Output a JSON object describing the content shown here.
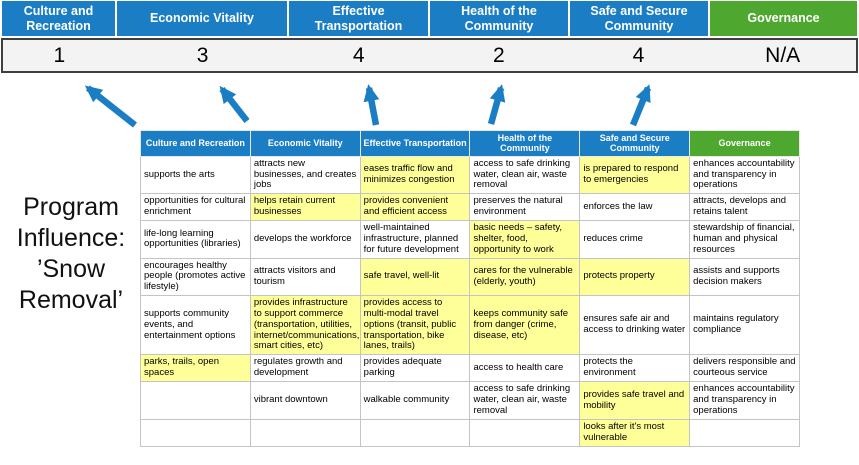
{
  "program_label": "Program Influence: ’Snow Removal’",
  "colors": {
    "header_blue": "#1b7ec5",
    "header_green": "#4ea72e",
    "highlight_yellow": "#ffff99",
    "arrow_blue": "#1b7ec5",
    "score_band_bg": "#f3f3f3",
    "score_band_border": "#3f3f3f"
  },
  "scoreboard": {
    "columns": [
      {
        "label": "Culture and Recreation",
        "score": "1",
        "style": "blue"
      },
      {
        "label": "Economic Vitality",
        "score": "3",
        "style": "blue"
      },
      {
        "label": "Effective Transportation",
        "score": "4",
        "style": "blue"
      },
      {
        "label": "Health of the Community",
        "score": "2",
        "style": "blue"
      },
      {
        "label": "Safe and Secure Community",
        "score": "4",
        "style": "blue"
      },
      {
        "label": "Governance",
        "score": "N/A",
        "style": "green"
      }
    ]
  },
  "matrix": {
    "headers": [
      {
        "label": "Culture and Recreation",
        "style": "blue"
      },
      {
        "label": "Economic Vitality",
        "style": "blue"
      },
      {
        "label": "Effective Transportation",
        "style": "blue"
      },
      {
        "label": "Health of the Community",
        "style": "blue"
      },
      {
        "label": "Safe and Secure Community",
        "style": "blue"
      },
      {
        "label": "Governance",
        "style": "green"
      }
    ],
    "rows": [
      [
        {
          "text": "supports the arts",
          "highlight": false
        },
        {
          "text": "attracts new businesses, and creates jobs",
          "highlight": false
        },
        {
          "text": "eases traffic flow and minimizes congestion",
          "highlight": true
        },
        {
          "text": "access to safe drinking water, clean air, waste removal",
          "highlight": false
        },
        {
          "text": "is prepared to respond to emergencies",
          "highlight": true
        },
        {
          "text": "enhances accountability and transparency in operations",
          "highlight": false
        }
      ],
      [
        {
          "text": "opportunities for cultural enrichment",
          "highlight": false
        },
        {
          "text": "helps retain current businesses",
          "highlight": true
        },
        {
          "text": "provides convenient and efficient access",
          "highlight": true
        },
        {
          "text": "preserves the natural environment",
          "highlight": false
        },
        {
          "text": "enforces the law",
          "highlight": false
        },
        {
          "text": "attracts, develops and retains talent",
          "highlight": false
        }
      ],
      [
        {
          "text": "life-long learning opportunities (libraries)",
          "highlight": false
        },
        {
          "text": "develops the workforce",
          "highlight": false
        },
        {
          "text": "well-maintained infrastructure, planned for future development",
          "highlight": false
        },
        {
          "text": "basic needs – safety, shelter, food, opportunity to work",
          "highlight": true
        },
        {
          "text": "reduces crime",
          "highlight": false
        },
        {
          "text": "stewardship of financial, human and physical resources",
          "highlight": false
        }
      ],
      [
        {
          "text": "encourages healthy people (promotes active lifestyle)",
          "highlight": false
        },
        {
          "text": "attracts visitors and tourism",
          "highlight": false
        },
        {
          "text": "safe travel, well-lit",
          "highlight": true
        },
        {
          "text": "cares for the vulnerable (elderly, youth)",
          "highlight": true
        },
        {
          "text": "protects property",
          "highlight": true
        },
        {
          "text": "assists and supports decision makers",
          "highlight": false
        }
      ],
      [
        {
          "text": "supports community events, and entertainment options",
          "highlight": false
        },
        {
          "text": "provides infrastructure to support commerce (transportation, utilities, internet/communications, smart cities, etc)",
          "highlight": true
        },
        {
          "text": "provides access to multi-modal travel options (transit, public transportation, bike lanes, trails)",
          "highlight": true
        },
        {
          "text": "keeps community safe from danger (crime, disease, etc)",
          "highlight": true
        },
        {
          "text": "ensures safe air and access to drinking water",
          "highlight": false
        },
        {
          "text": "maintains regulatory compliance",
          "highlight": false
        }
      ],
      [
        {
          "text": "parks, trails, open spaces",
          "highlight": true
        },
        {
          "text": "regulates growth and development",
          "highlight": false
        },
        {
          "text": "provides adequate parking",
          "highlight": false
        },
        {
          "text": "access to health care",
          "highlight": false
        },
        {
          "text": "protects the environment",
          "highlight": false
        },
        {
          "text": "delivers responsible and courteous service",
          "highlight": false
        }
      ],
      [
        {
          "text": "",
          "highlight": false
        },
        {
          "text": "vibrant downtown",
          "highlight": false
        },
        {
          "text": "walkable community",
          "highlight": false
        },
        {
          "text": "access to safe drinking water, clean air, waste removal",
          "highlight": false
        },
        {
          "text": "provides safe travel and mobility",
          "highlight": true
        },
        {
          "text": "enhances accountability and transparency in operations",
          "highlight": false
        }
      ],
      [
        {
          "text": "",
          "highlight": false
        },
        {
          "text": "",
          "highlight": false
        },
        {
          "text": "",
          "highlight": false
        },
        {
          "text": "",
          "highlight": false
        },
        {
          "text": "looks after it's most vulnerable",
          "highlight": true
        },
        {
          "text": "",
          "highlight": false
        }
      ]
    ]
  }
}
